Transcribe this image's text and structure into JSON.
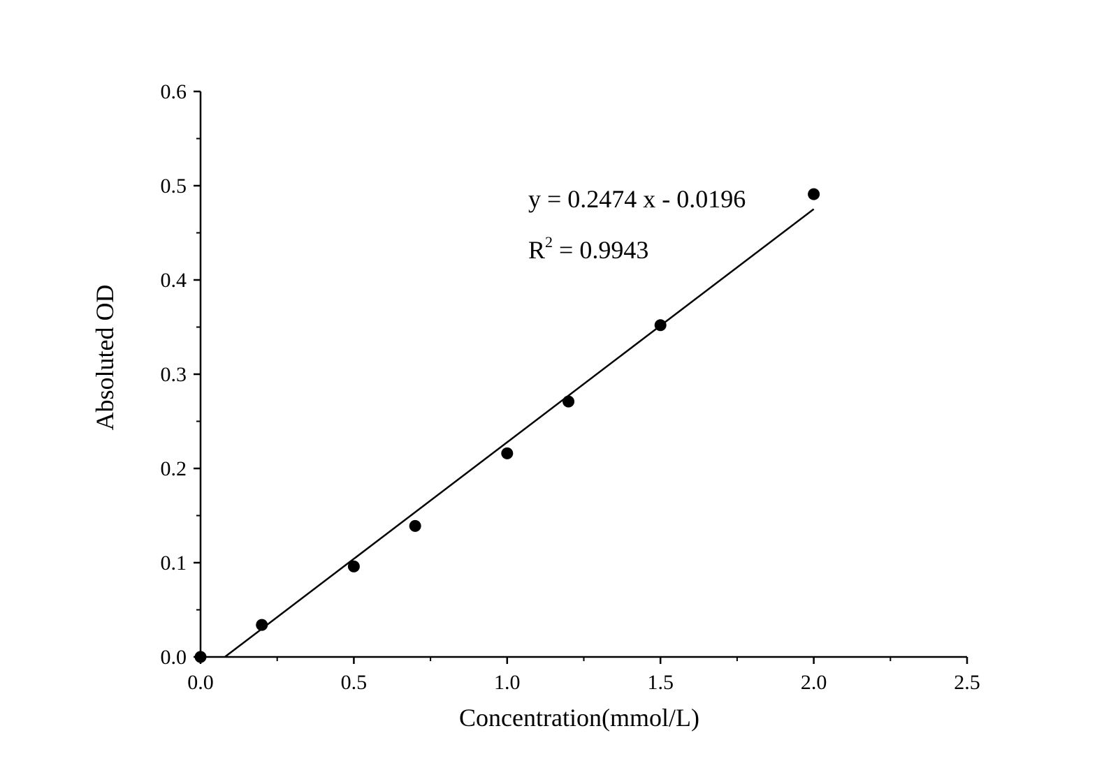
{
  "chart_data": {
    "type": "scatter",
    "xlabel": "Concentration(mmol/L)",
    "ylabel": "Absoluted OD",
    "xlim": [
      0,
      2.5
    ],
    "ylim": [
      0,
      0.6
    ],
    "xticks": [
      "0.0",
      "0.5",
      "1.0",
      "1.5",
      "2.0",
      "2.5"
    ],
    "yticks": [
      "0.0",
      "0.1",
      "0.2",
      "0.3",
      "0.4",
      "0.5",
      "0.6"
    ],
    "grid": false,
    "series": [
      {
        "x": [
          0,
          0.2,
          0.5,
          0.7,
          1.0,
          1.2,
          1.5,
          2.0
        ],
        "y": [
          0,
          0.034,
          0.096,
          0.139,
          0.216,
          0.271,
          0.352,
          0.491
        ]
      }
    ],
    "fit_line": {
      "slope": 0.2474,
      "intercept": -0.0196,
      "x_range": [
        0.0792,
        2.0
      ]
    },
    "annotations": {
      "equation": "y = 0.2474 x - 0.0196",
      "r2_base": "R",
      "r2_sup": "2",
      "r2_rest": " = 0.9943"
    },
    "colors": {
      "marker": "#000000",
      "line": "#000000",
      "axis": "#000000"
    }
  }
}
